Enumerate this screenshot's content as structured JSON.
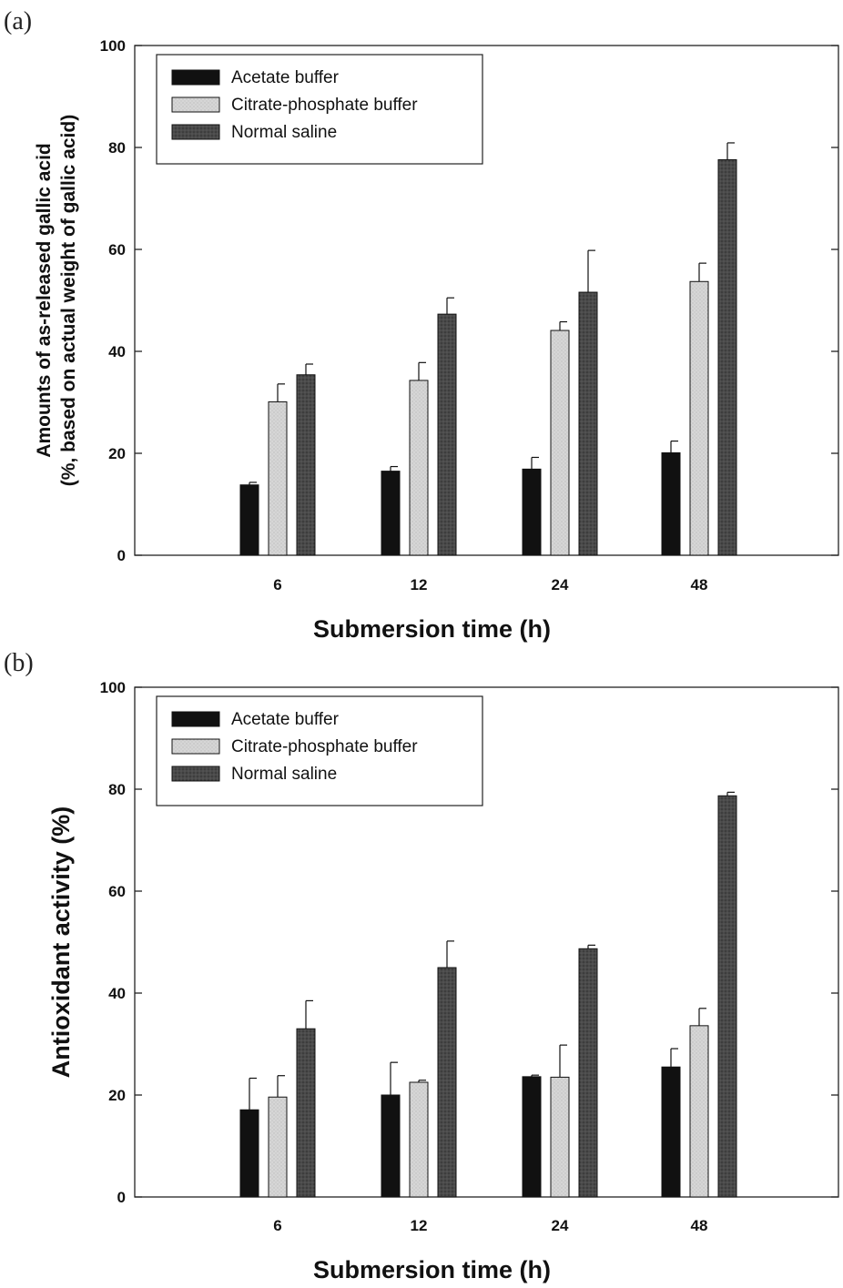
{
  "chart_data": [
    {
      "type": "bar",
      "panel_label": "(a)",
      "categories": [
        "6",
        "12",
        "24",
        "48"
      ],
      "xlabel": "Submersion time (h)",
      "ylabel_lines": [
        "Amounts of as-released gallic acid",
        "(%, based on actual weight of gallic acid)"
      ],
      "ylim": [
        0,
        100
      ],
      "yticks": [
        "0",
        "20",
        "40",
        "60",
        "80",
        "100"
      ],
      "legend_position": "top-left",
      "series": [
        {
          "name": "Acetate buffer",
          "color": "#111111",
          "values": [
            13.8,
            16.5,
            16.9,
            20.1
          ],
          "errors": [
            0.5,
            0.9,
            2.3,
            2.3
          ]
        },
        {
          "name": "Citrate-phosphate buffer",
          "color": "#d4d4d4",
          "values": [
            30.1,
            34.3,
            44.1,
            53.7
          ],
          "errors": [
            3.5,
            3.5,
            1.7,
            3.6
          ]
        },
        {
          "name": "Normal saline",
          "color": "#454545",
          "values": [
            35.4,
            47.3,
            51.6,
            77.6
          ],
          "errors": [
            2.1,
            3.2,
            8.2,
            3.3
          ]
        }
      ]
    },
    {
      "type": "bar",
      "panel_label": "(b)",
      "categories": [
        "6",
        "12",
        "24",
        "48"
      ],
      "xlabel": "Submersion time (h)",
      "ylabel_lines": [
        "Antioxidant activity (%)"
      ],
      "ylim": [
        0,
        100
      ],
      "yticks": [
        "0",
        "20",
        "40",
        "60",
        "80",
        "100"
      ],
      "legend_position": "top-left",
      "series": [
        {
          "name": "Acetate buffer",
          "color": "#111111",
          "values": [
            17.1,
            20.0,
            23.6,
            25.5
          ],
          "errors": [
            6.2,
            6.4,
            0.3,
            3.6
          ]
        },
        {
          "name": "Citrate-phosphate buffer",
          "color": "#d4d4d4",
          "values": [
            19.6,
            22.5,
            23.5,
            33.6
          ],
          "errors": [
            4.2,
            0.4,
            6.3,
            3.4
          ]
        },
        {
          "name": "Normal saline",
          "color": "#454545",
          "values": [
            33.0,
            45.0,
            48.7,
            78.7
          ],
          "errors": [
            5.5,
            5.2,
            0.7,
            0.7
          ]
        }
      ]
    }
  ]
}
